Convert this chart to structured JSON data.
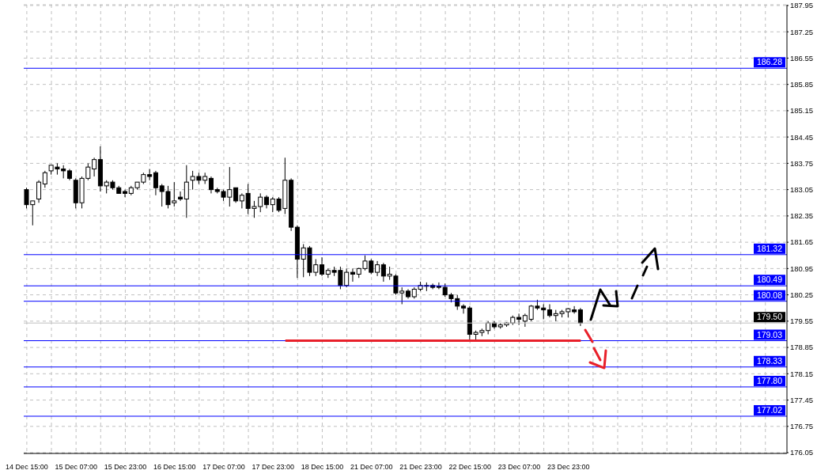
{
  "chart_data": {
    "type": "candlestick",
    "categories": [
      "14 Dec 15:00",
      null,
      null,
      null,
      null,
      null,
      null,
      null,
      "15 Dec 07:00",
      null,
      null,
      null,
      null,
      null,
      null,
      null,
      "15 Dec 23:00",
      null,
      null,
      null,
      null,
      null,
      null,
      null,
      "16 Dec 15:00",
      null,
      null,
      null,
      null,
      null,
      null,
      null,
      "17 Dec 07:00",
      null,
      null,
      null,
      null,
      null,
      null,
      null,
      "17 Dec 23:00",
      null,
      null,
      null,
      null,
      null,
      null,
      null,
      "18 Dec 15:00",
      null,
      null,
      null,
      null,
      null,
      null,
      null,
      "21 Dec 07:00",
      null,
      null,
      null,
      null,
      null,
      null,
      null,
      "21 Dec 23:00",
      null,
      null,
      null,
      null,
      null,
      null,
      null,
      "22 Dec 15:00",
      null,
      null,
      null,
      null,
      null,
      null,
      null,
      "23 Dec 07:00",
      null,
      null,
      null,
      null,
      null,
      null,
      null,
      "23 Dec 23:00",
      null,
      null,
      null,
      null,
      null,
      null,
      null,
      null,
      null,
      null,
      null,
      null,
      null,
      null,
      null,
      null,
      null,
      null,
      null,
      null,
      null,
      null,
      null,
      null,
      null,
      null,
      null,
      null,
      null,
      null,
      null,
      null,
      null,
      null,
      null
    ],
    "ohlc": [
      [
        183.05,
        183.1,
        182.55,
        182.65
      ],
      [
        182.65,
        182.75,
        182.1,
        182.75
      ],
      [
        182.8,
        183.3,
        182.7,
        183.25
      ],
      [
        183.2,
        183.55,
        183.1,
        183.5
      ],
      [
        183.55,
        183.7,
        183.45,
        183.7
      ],
      [
        183.65,
        183.75,
        183.45,
        183.6
      ],
      [
        183.6,
        183.7,
        183.35,
        183.55
      ],
      [
        183.55,
        183.6,
        183.3,
        183.35
      ],
      [
        183.3,
        183.35,
        182.55,
        182.7
      ],
      [
        182.7,
        183.4,
        182.55,
        183.35
      ],
      [
        183.35,
        183.75,
        183.3,
        183.65
      ],
      [
        183.6,
        183.9,
        183.4,
        183.85
      ],
      [
        183.85,
        184.2,
        183.0,
        183.15
      ],
      [
        183.15,
        183.3,
        182.95,
        183.25
      ],
      [
        183.25,
        183.3,
        183.05,
        183.1
      ],
      [
        183.1,
        183.15,
        182.95,
        182.95
      ],
      [
        183.0,
        183.05,
        182.85,
        182.95
      ],
      [
        182.95,
        183.15,
        182.9,
        183.1
      ],
      [
        183.1,
        183.25,
        183.05,
        183.25
      ],
      [
        183.25,
        183.5,
        183.2,
        183.45
      ],
      [
        183.45,
        183.6,
        183.3,
        183.4
      ],
      [
        183.5,
        183.55,
        182.9,
        183.1
      ],
      [
        183.15,
        183.2,
        182.6,
        183.0
      ],
      [
        183.0,
        183.15,
        182.55,
        182.65
      ],
      [
        182.7,
        183.25,
        182.6,
        182.75
      ],
      [
        182.85,
        183.0,
        182.75,
        182.8
      ],
      [
        182.8,
        183.7,
        182.3,
        183.25
      ],
      [
        183.3,
        183.55,
        183.05,
        183.4
      ],
      [
        183.4,
        183.5,
        183.2,
        183.3
      ],
      [
        183.3,
        183.5,
        183.2,
        183.4
      ],
      [
        183.35,
        183.4,
        182.95,
        183.05
      ],
      [
        183.05,
        183.1,
        182.95,
        183.0
      ],
      [
        183.0,
        183.05,
        182.75,
        182.85
      ],
      [
        182.85,
        183.65,
        182.6,
        183.05
      ],
      [
        183.1,
        183.1,
        182.7,
        182.75
      ],
      [
        182.75,
        182.95,
        182.55,
        182.9
      ],
      [
        182.95,
        183.2,
        182.4,
        182.55
      ],
      [
        182.55,
        182.75,
        182.3,
        182.6
      ],
      [
        182.6,
        182.95,
        182.45,
        182.85
      ],
      [
        182.85,
        182.9,
        182.55,
        182.65
      ],
      [
        182.65,
        182.85,
        182.45,
        182.8
      ],
      [
        182.8,
        182.85,
        182.45,
        182.5
      ],
      [
        182.55,
        183.9,
        182.4,
        183.3
      ],
      [
        183.3,
        183.35,
        181.95,
        182.05
      ],
      [
        182.05,
        182.1,
        180.7,
        181.2
      ],
      [
        181.2,
        181.6,
        180.72,
        181.5
      ],
      [
        181.5,
        181.55,
        180.75,
        180.85
      ],
      [
        180.85,
        181.2,
        180.75,
        181.05
      ],
      [
        181.05,
        181.25,
        180.75,
        180.8
      ],
      [
        180.8,
        180.95,
        180.7,
        180.9
      ],
      [
        180.9,
        181.0,
        180.75,
        180.85
      ],
      [
        180.9,
        181.0,
        180.4,
        180.5
      ],
      [
        180.5,
        180.95,
        180.45,
        180.85
      ],
      [
        180.85,
        180.95,
        180.6,
        180.8
      ],
      [
        180.8,
        180.97,
        180.7,
        180.95
      ],
      [
        180.95,
        181.3,
        180.9,
        181.15
      ],
      [
        181.15,
        181.2,
        180.8,
        180.85
      ],
      [
        180.85,
        181.15,
        180.75,
        181.05
      ],
      [
        181.05,
        181.1,
        180.6,
        180.75
      ],
      [
        180.75,
        181.0,
        180.65,
        180.8
      ],
      [
        180.75,
        180.8,
        180.25,
        180.3
      ],
      [
        180.3,
        180.45,
        180.0,
        180.35
      ],
      [
        180.35,
        180.4,
        180.15,
        180.2
      ],
      [
        180.2,
        180.45,
        180.15,
        180.4
      ],
      [
        180.4,
        180.6,
        180.35,
        180.5
      ],
      [
        180.5,
        180.58,
        180.35,
        180.5
      ],
      [
        180.5,
        180.55,
        180.4,
        180.45
      ],
      [
        180.48,
        180.58,
        180.4,
        180.45
      ],
      [
        180.45,
        180.55,
        180.2,
        180.25
      ],
      [
        180.25,
        180.3,
        180.05,
        180.15
      ],
      [
        180.15,
        180.25,
        179.85,
        179.95
      ],
      [
        179.95,
        180.0,
        179.75,
        179.9
      ],
      [
        179.9,
        179.95,
        179.03,
        179.2
      ],
      [
        179.2,
        179.3,
        179.03,
        179.25
      ],
      [
        179.25,
        179.35,
        179.15,
        179.3
      ],
      [
        179.3,
        179.55,
        179.2,
        179.5
      ],
      [
        179.5,
        179.55,
        179.35,
        179.4
      ],
      [
        179.4,
        179.5,
        179.35,
        179.45
      ],
      [
        179.45,
        179.52,
        179.4,
        179.5
      ],
      [
        179.5,
        179.7,
        179.45,
        179.65
      ],
      [
        179.65,
        179.75,
        179.45,
        179.6
      ],
      [
        179.55,
        179.75,
        179.4,
        179.7
      ],
      [
        179.6,
        179.98,
        179.55,
        179.95
      ],
      [
        179.95,
        180.12,
        179.85,
        179.9
      ],
      [
        179.9,
        180.0,
        179.6,
        179.85
      ],
      [
        179.85,
        180.0,
        179.65,
        179.7
      ],
      [
        179.7,
        179.85,
        179.55,
        179.75
      ],
      [
        179.75,
        179.85,
        179.65,
        179.8
      ],
      [
        179.8,
        179.9,
        179.65,
        179.88
      ],
      [
        179.85,
        179.95,
        179.75,
        179.8
      ],
      [
        179.85,
        179.9,
        179.42,
        179.5
      ],
      null,
      null,
      null,
      null,
      null,
      null,
      null,
      null,
      null,
      null,
      null,
      null,
      null,
      null,
      null,
      null,
      null,
      null,
      null,
      null,
      null,
      null,
      null,
      null,
      null,
      null,
      null,
      null,
      null,
      null,
      null,
      null,
      null
    ],
    "series": [
      {
        "type": "line",
        "color": "#e8202a",
        "values": [
          null,
          null,
          null,
          null,
          null,
          null,
          null,
          null,
          null,
          null,
          null,
          null,
          null,
          null,
          null,
          null,
          null,
          null,
          null,
          null,
          null,
          null,
          null,
          null,
          null,
          null,
          null,
          null,
          null,
          null,
          null,
          null,
          null,
          null,
          null,
          null,
          null,
          null,
          null,
          null,
          null,
          null,
          179.03,
          179.03,
          179.03,
          179.03,
          179.03,
          179.03,
          179.03,
          179.03,
          179.03,
          179.03,
          179.03,
          179.03,
          179.03,
          179.03,
          179.03,
          179.03,
          179.03,
          179.03,
          179.03,
          179.03,
          179.03,
          179.03,
          179.03,
          179.03,
          179.03,
          179.03,
          179.03,
          179.03,
          179.03,
          179.03,
          179.03,
          179.03,
          179.03,
          179.03,
          179.03,
          179.03,
          179.03,
          179.03,
          179.03,
          179.03,
          179.03,
          179.03,
          179.03,
          179.03,
          179.03,
          179.03,
          179.03,
          179.03,
          179.03,
          null,
          null,
          null,
          null,
          null,
          null,
          null,
          null,
          null,
          null,
          null,
          null,
          null,
          null,
          null,
          null,
          null,
          null,
          null,
          null,
          null,
          null,
          null,
          null,
          null,
          null,
          null,
          null,
          null,
          null,
          null,
          null,
          null
        ]
      }
    ],
    "ylim": [
      176.03,
      187.97
    ],
    "yticks": [
      176.05,
      176.75,
      177.45,
      178.15,
      178.85,
      179.55,
      180.25,
      180.95,
      181.65,
      182.35,
      183.05,
      183.75,
      184.45,
      185.15,
      185.85,
      186.55,
      187.25,
      187.95
    ],
    "ref_lines": [
      {
        "axis": "y",
        "value": 186.28,
        "label": "186.28",
        "color": "#0000ff"
      },
      {
        "axis": "y",
        "value": 181.32,
        "label": "181.32",
        "color": "#0000ff"
      },
      {
        "axis": "y",
        "value": 180.49,
        "label": "180.49",
        "color": "#0000ff"
      },
      {
        "axis": "y",
        "value": 180.08,
        "label": "180.08",
        "color": "#0000ff"
      },
      {
        "axis": "y",
        "value": 179.5,
        "label": "179.50",
        "color": "#c0c0c0"
      },
      {
        "axis": "y",
        "value": 179.03,
        "label": "179.03",
        "color": "#0000ff"
      },
      {
        "axis": "y",
        "value": 178.33,
        "label": "178.33",
        "color": "#0000ff"
      },
      {
        "axis": "y",
        "value": 177.8,
        "label": "177.80",
        "color": "#0000ff"
      },
      {
        "axis": "y",
        "value": 177.02,
        "label": "177.02",
        "color": "#0000ff"
      }
    ],
    "grid": true
  }
}
